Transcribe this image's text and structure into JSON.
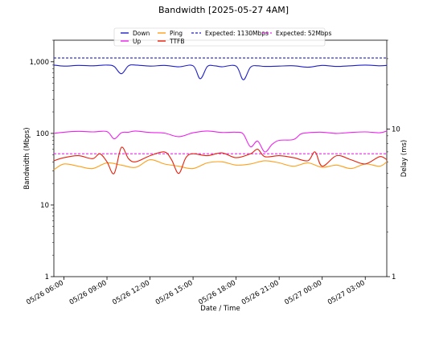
{
  "chart_data": {
    "type": "line",
    "title": "Bandwidth [2025-05-27 4AM]",
    "xlabel": "Date / Time",
    "ylabel_left": "Bandwidth (Mbps)",
    "ylabel_right": "Delay (ms)",
    "x_ticks": [
      "05/26 06:00",
      "05/26 09:00",
      "05/26 12:00",
      "05/26 15:00",
      "05/26 18:00",
      "05/26 21:00",
      "05/27 00:00",
      "05/27 03:00"
    ],
    "x_range_hours_from_0600": [
      -0.7,
      22.5
    ],
    "y_left": {
      "scale": "log",
      "lim": [
        1,
        2000
      ],
      "ticks": [
        "1",
        "10",
        "100",
        "1,000"
      ]
    },
    "y_right": {
      "scale": "log",
      "lim": [
        1,
        40
      ],
      "ticks": [
        "1",
        "10"
      ]
    },
    "legend": [
      {
        "label": "Down",
        "color": "#1f1fc8"
      },
      {
        "label": "Up",
        "color": "#ee22ee"
      },
      {
        "label": "Ping",
        "color": "#ff9f1a"
      },
      {
        "label": "TTFB",
        "color": "#e8200c"
      },
      {
        "label": "Expected: 1130Mbps",
        "color": "#1f1fc8",
        "dashed": true
      },
      {
        "label": "Expected: 52Mbps",
        "color": "#ee22ee",
        "dashed": true
      }
    ],
    "series": [
      {
        "name": "Down",
        "axis": "left",
        "color": "#1f1fc8",
        "x": [
          -0.7,
          0,
          1,
          2,
          3,
          3.5,
          4,
          4.5,
          5,
          6,
          7,
          8,
          9,
          9.5,
          10,
          10.5,
          11,
          12,
          12.5,
          13,
          13.5,
          14,
          15,
          16,
          17,
          18,
          19,
          20,
          21,
          22,
          22.5
        ],
        "y": [
          900,
          870,
          890,
          880,
          900,
          860,
          680,
          880,
          900,
          870,
          890,
          850,
          880,
          580,
          860,
          880,
          850,
          870,
          560,
          840,
          880,
          860,
          870,
          880,
          840,
          890,
          860,
          880,
          900,
          880,
          890
        ]
      },
      {
        "name": "Up",
        "axis": "left",
        "color": "#ee22ee",
        "x": [
          -0.7,
          0,
          1,
          2,
          3,
          3.5,
          4,
          4.5,
          5,
          6,
          7,
          8,
          9,
          10,
          11,
          12,
          12.5,
          13,
          13.5,
          14,
          14.5,
          15,
          16,
          16.5,
          17,
          18,
          19,
          20,
          21,
          22,
          22.5
        ],
        "y": [
          100,
          104,
          107,
          105,
          106,
          84,
          102,
          104,
          108,
          103,
          101,
          90,
          102,
          108,
          103,
          104,
          98,
          65,
          78,
          55,
          70,
          80,
          82,
          98,
          102,
          104,
          100,
          103,
          105,
          102,
          108
        ]
      },
      {
        "name": "Expected: 1130Mbps",
        "axis": "left",
        "color": "#1f1fc8",
        "dashed": true,
        "x": [
          -0.7,
          22.5
        ],
        "y": [
          1130,
          1130
        ]
      },
      {
        "name": "Expected: 52Mbps",
        "axis": "left",
        "color": "#ee22ee",
        "dashed": true,
        "x": [
          -0.7,
          22.5
        ],
        "y": [
          52,
          52
        ]
      },
      {
        "name": "Ping",
        "axis": "right",
        "color": "#ff9f1a",
        "x": [
          -0.7,
          0,
          1,
          2,
          3,
          4,
          5,
          6,
          7,
          8,
          9,
          10,
          11,
          12,
          13,
          14,
          15,
          16,
          17,
          18,
          19,
          20,
          21,
          22,
          22.5
        ],
        "y": [
          5.3,
          5.8,
          5.6,
          5.4,
          5.9,
          5.7,
          5.5,
          6.2,
          5.8,
          5.6,
          5.4,
          5.9,
          6.0,
          5.7,
          5.8,
          6.1,
          5.9,
          5.6,
          5.9,
          5.5,
          5.7,
          5.4,
          5.8,
          5.6,
          6.0
        ]
      },
      {
        "name": "TTFB",
        "axis": "right",
        "color": "#e8200c",
        "x": [
          -0.7,
          0,
          1,
          2,
          2.5,
          3,
          3.5,
          4,
          4.5,
          5,
          6,
          7,
          7.5,
          8,
          8.5,
          9,
          10,
          11,
          12,
          13,
          13.5,
          14,
          15,
          16,
          17,
          17.5,
          18,
          19,
          20,
          21,
          22,
          22.5
        ],
        "y": [
          6.1,
          6.4,
          6.6,
          6.3,
          6.8,
          6.0,
          5.0,
          7.5,
          6.3,
          6.0,
          6.6,
          7.0,
          6.2,
          5.0,
          6.4,
          6.8,
          6.6,
          6.9,
          6.4,
          6.8,
          7.3,
          6.5,
          6.6,
          6.4,
          6.1,
          7.0,
          5.6,
          6.6,
          6.2,
          5.8,
          6.5,
          6.2
        ]
      }
    ]
  }
}
